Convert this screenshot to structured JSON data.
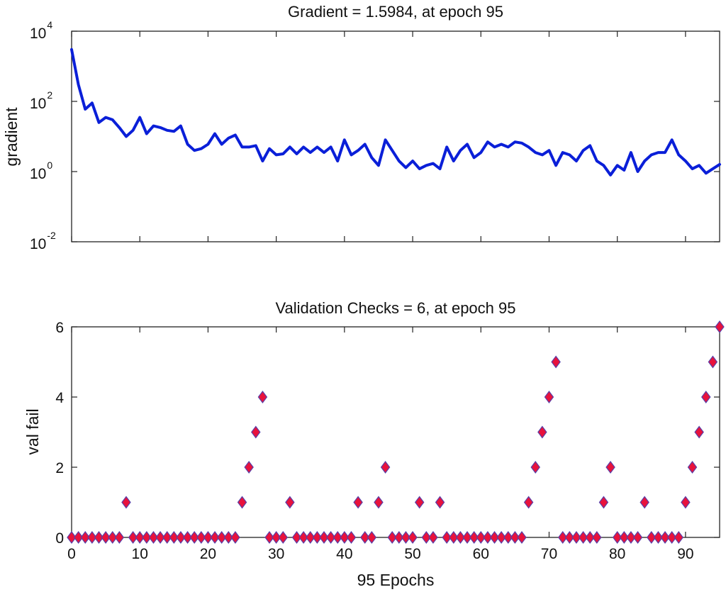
{
  "chart_data": [
    {
      "type": "line",
      "title": "Gradient = 1.5984, at epoch 95",
      "xlabel": "",
      "ylabel": "gradient",
      "yscale": "log",
      "xlim": [
        0,
        95
      ],
      "ylim": [
        0.01,
        10000
      ],
      "y_ticks": [
        {
          "base": "10",
          "exp": "4",
          "value": 10000
        },
        {
          "base": "10",
          "exp": "2",
          "value": 100
        },
        {
          "base": "10",
          "exp": "0",
          "value": 1
        },
        {
          "base": "10",
          "exp": "-2",
          "value": 0.01
        }
      ],
      "x_ticks": [
        0,
        10,
        20,
        30,
        40,
        50,
        60,
        70,
        80,
        90
      ],
      "x_tick_labels_shown": false,
      "grid": false,
      "series": [
        {
          "color": "#0a1fd8",
          "x": [
            0,
            1,
            2,
            3,
            4,
            5,
            6,
            7,
            8,
            9,
            10,
            11,
            12,
            13,
            14,
            15,
            16,
            17,
            18,
            19,
            20,
            21,
            22,
            23,
            24,
            25,
            26,
            27,
            28,
            29,
            30,
            31,
            32,
            33,
            34,
            35,
            36,
            37,
            38,
            39,
            40,
            41,
            42,
            43,
            44,
            45,
            46,
            47,
            48,
            49,
            50,
            51,
            52,
            53,
            54,
            55,
            56,
            57,
            58,
            59,
            60,
            61,
            62,
            63,
            64,
            65,
            66,
            67,
            68,
            69,
            70,
            71,
            72,
            73,
            74,
            75,
            76,
            77,
            78,
            79,
            80,
            81,
            82,
            83,
            84,
            85,
            86,
            87,
            88,
            89,
            90,
            91,
            92,
            93,
            94,
            95
          ],
          "y": [
            3000,
            300,
            60,
            90,
            25,
            35,
            30,
            18,
            10,
            15,
            35,
            12,
            20,
            18,
            15,
            14,
            20,
            6,
            4,
            4.5,
            6,
            12,
            6,
            9,
            11,
            5,
            5,
            5.5,
            2,
            4.5,
            3,
            3.2,
            5,
            3.2,
            5,
            3.5,
            5,
            3.5,
            5,
            2,
            8,
            3,
            4,
            6,
            2.5,
            1.5,
            8,
            4,
            2,
            1.3,
            2,
            1.2,
            1.5,
            1.7,
            1.2,
            5,
            2,
            4,
            6,
            2.5,
            3.5,
            7,
            5,
            6,
            5,
            7,
            6.5,
            5,
            3.5,
            3,
            4,
            1.5,
            3.5,
            3,
            2,
            4,
            5.5,
            2,
            1.5,
            0.8,
            1.5,
            1.1,
            3.5,
            1,
            2,
            3,
            3.5,
            3.5,
            8,
            3,
            2,
            1.2,
            1.5,
            0.9,
            1.2,
            1.6
          ]
        }
      ]
    },
    {
      "type": "scatter",
      "title": "Validation Checks = 6, at epoch 95",
      "xlabel": "95 Epochs",
      "ylabel": "val fail",
      "xlim": [
        0,
        95
      ],
      "ylim": [
        0,
        6
      ],
      "y_ticks": [
        0,
        2,
        4,
        6
      ],
      "x_ticks": [
        0,
        10,
        20,
        30,
        40,
        50,
        60,
        70,
        80,
        90
      ],
      "grid": false,
      "marker": "diamond",
      "marker_fill": "#e8123c",
      "marker_edge": "#5a3fa8",
      "series": [
        {
          "x": [
            0,
            1,
            2,
            3,
            4,
            5,
            6,
            7,
            8,
            9,
            10,
            11,
            12,
            13,
            14,
            15,
            16,
            17,
            18,
            19,
            20,
            21,
            22,
            23,
            24,
            25,
            26,
            27,
            28,
            29,
            30,
            31,
            32,
            33,
            34,
            35,
            36,
            37,
            38,
            39,
            40,
            41,
            42,
            43,
            44,
            45,
            46,
            47,
            48,
            49,
            50,
            51,
            52,
            53,
            54,
            55,
            56,
            57,
            58,
            59,
            60,
            61,
            62,
            63,
            64,
            65,
            66,
            67,
            68,
            69,
            70,
            71,
            72,
            73,
            74,
            75,
            76,
            77,
            78,
            79,
            80,
            81,
            82,
            83,
            84,
            85,
            86,
            87,
            88,
            89,
            90,
            91,
            92,
            93,
            94,
            95
          ],
          "y": [
            0,
            0,
            0,
            0,
            0,
            0,
            0,
            0,
            1,
            0,
            0,
            0,
            0,
            0,
            0,
            0,
            0,
            0,
            0,
            0,
            0,
            0,
            0,
            0,
            0,
            1,
            2,
            3,
            4,
            0,
            0,
            0,
            1,
            0,
            0,
            0,
            0,
            0,
            0,
            0,
            0,
            0,
            1,
            0,
            0,
            1,
            2,
            0,
            0,
            0,
            0,
            1,
            0,
            0,
            1,
            0,
            0,
            0,
            0,
            0,
            0,
            0,
            0,
            0,
            0,
            0,
            0,
            1,
            2,
            3,
            4,
            5,
            0,
            0,
            0,
            0,
            0,
            0,
            1,
            2,
            0,
            0,
            0,
            0,
            1,
            0,
            0,
            0,
            0,
            0,
            1,
            2,
            3,
            4,
            5,
            6
          ]
        }
      ]
    }
  ]
}
